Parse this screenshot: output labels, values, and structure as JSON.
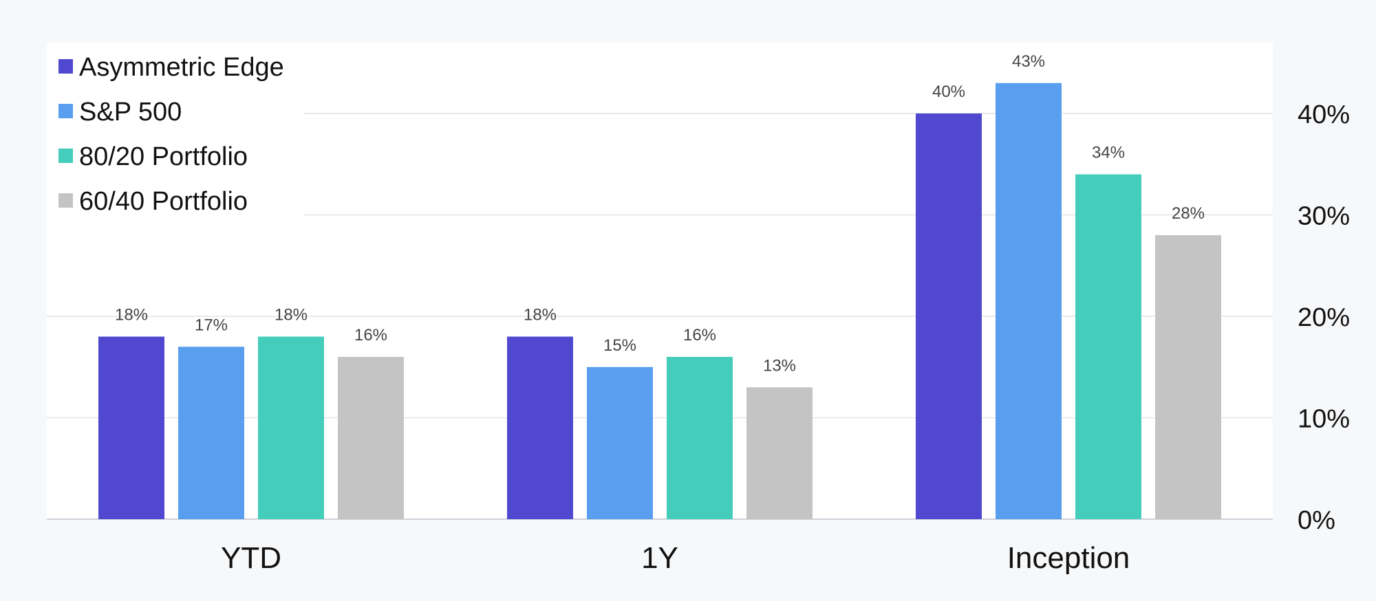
{
  "chart_data": {
    "type": "bar",
    "categories": [
      "YTD",
      "1Y",
      "Inception"
    ],
    "series": [
      {
        "name": "Asymmetric Edge",
        "color": "#5048cf",
        "values": [
          18,
          18,
          40
        ],
        "labels": [
          "18%",
          "18%",
          "40%"
        ]
      },
      {
        "name": "S&P 500",
        "color": "#5a9ef0",
        "values": [
          17,
          15,
          43
        ],
        "labels": [
          "17%",
          "15%",
          "43%"
        ]
      },
      {
        "name": "80/20 Portfolio",
        "color": "#45cdbc",
        "values": [
          18,
          16,
          34
        ],
        "labels": [
          "18%",
          "16%",
          "34%"
        ]
      },
      {
        "name": "60/40 Portfolio",
        "color": "#c4c4c4",
        "values": [
          16,
          13,
          28
        ],
        "labels": [
          "16%",
          "13%",
          "28%"
        ]
      }
    ],
    "yticks": [
      0,
      10,
      20,
      30,
      40
    ],
    "ytick_labels": [
      "0%",
      "10%",
      "20%",
      "30%",
      "40%"
    ],
    "ylim": [
      0,
      45
    ],
    "y_axis_side": "right",
    "grid": true,
    "legend_position": "top-left",
    "title": "",
    "xlabel": "",
    "ylabel": ""
  }
}
